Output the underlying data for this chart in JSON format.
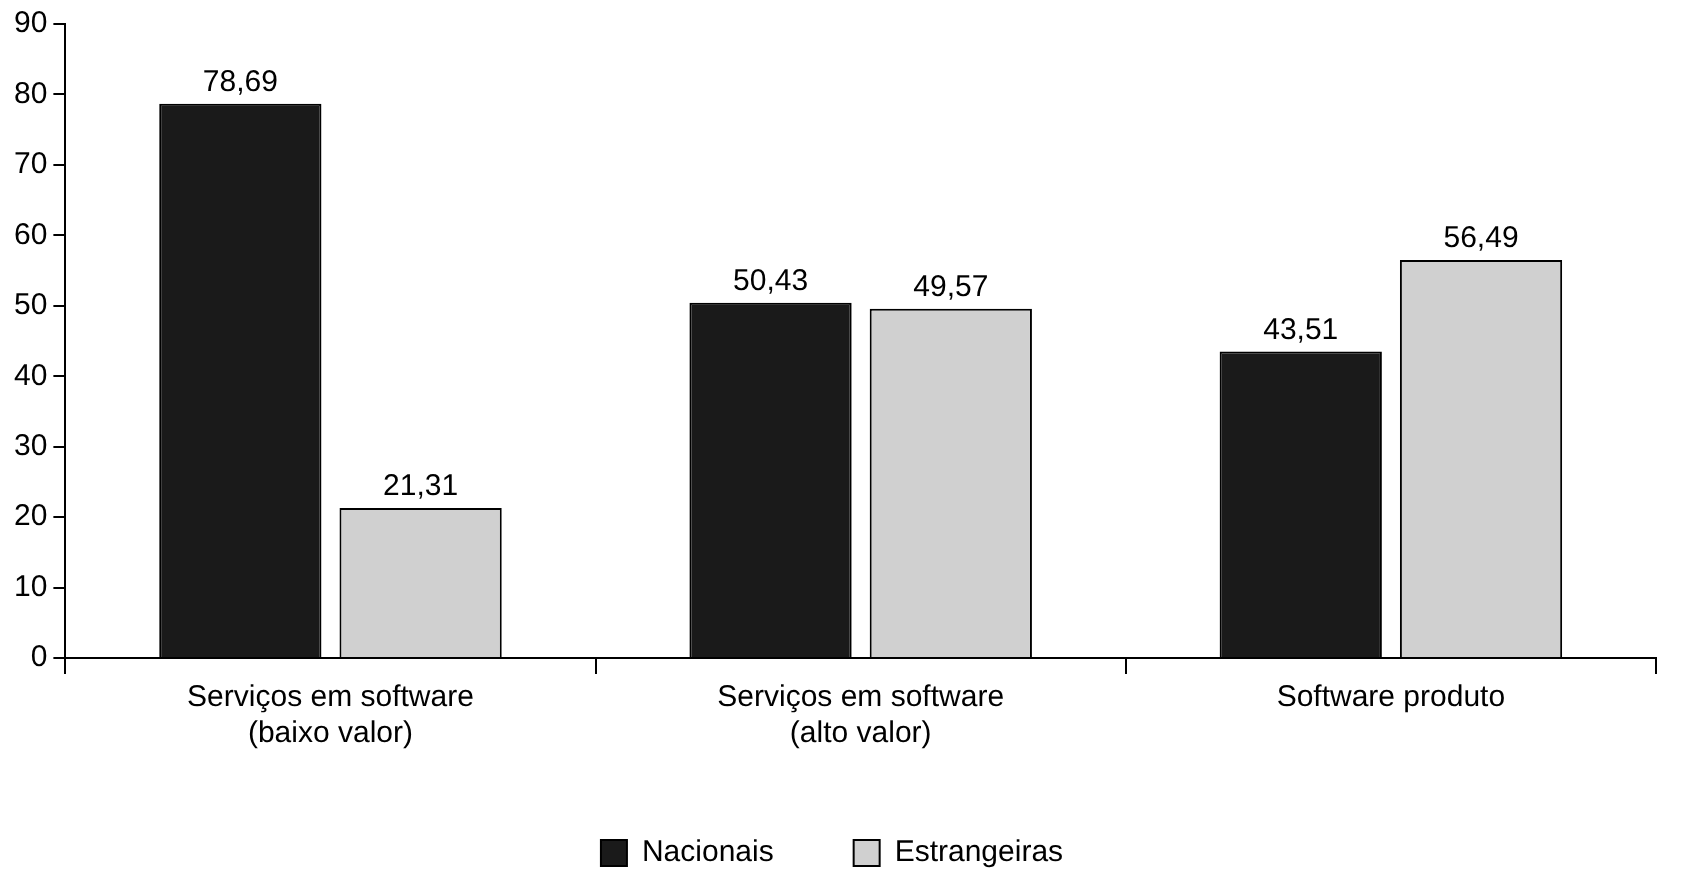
{
  "chart_data": {
    "type": "bar",
    "categories": [
      "Serviços em software (baixo valor)",
      "Serviços em software (alto valor)",
      "Software produto"
    ],
    "series": [
      {
        "name": "Nacionais",
        "color": "#1a1a1a",
        "values": [
          78.69,
          50.43,
          43.51
        ],
        "value_labels": [
          "78,69",
          "50,43",
          "43,51"
        ]
      },
      {
        "name": "Estrangeiras",
        "color": "#d0d0d0",
        "values": [
          21.31,
          49.57,
          56.49
        ],
        "value_labels": [
          "21,31",
          "49,57",
          "56,49"
        ]
      }
    ],
    "ylim": [
      0,
      90
    ],
    "yticks": [
      0,
      10,
      20,
      30,
      40,
      50,
      60,
      70,
      80,
      90
    ],
    "grid": false,
    "legend": "bottom"
  }
}
